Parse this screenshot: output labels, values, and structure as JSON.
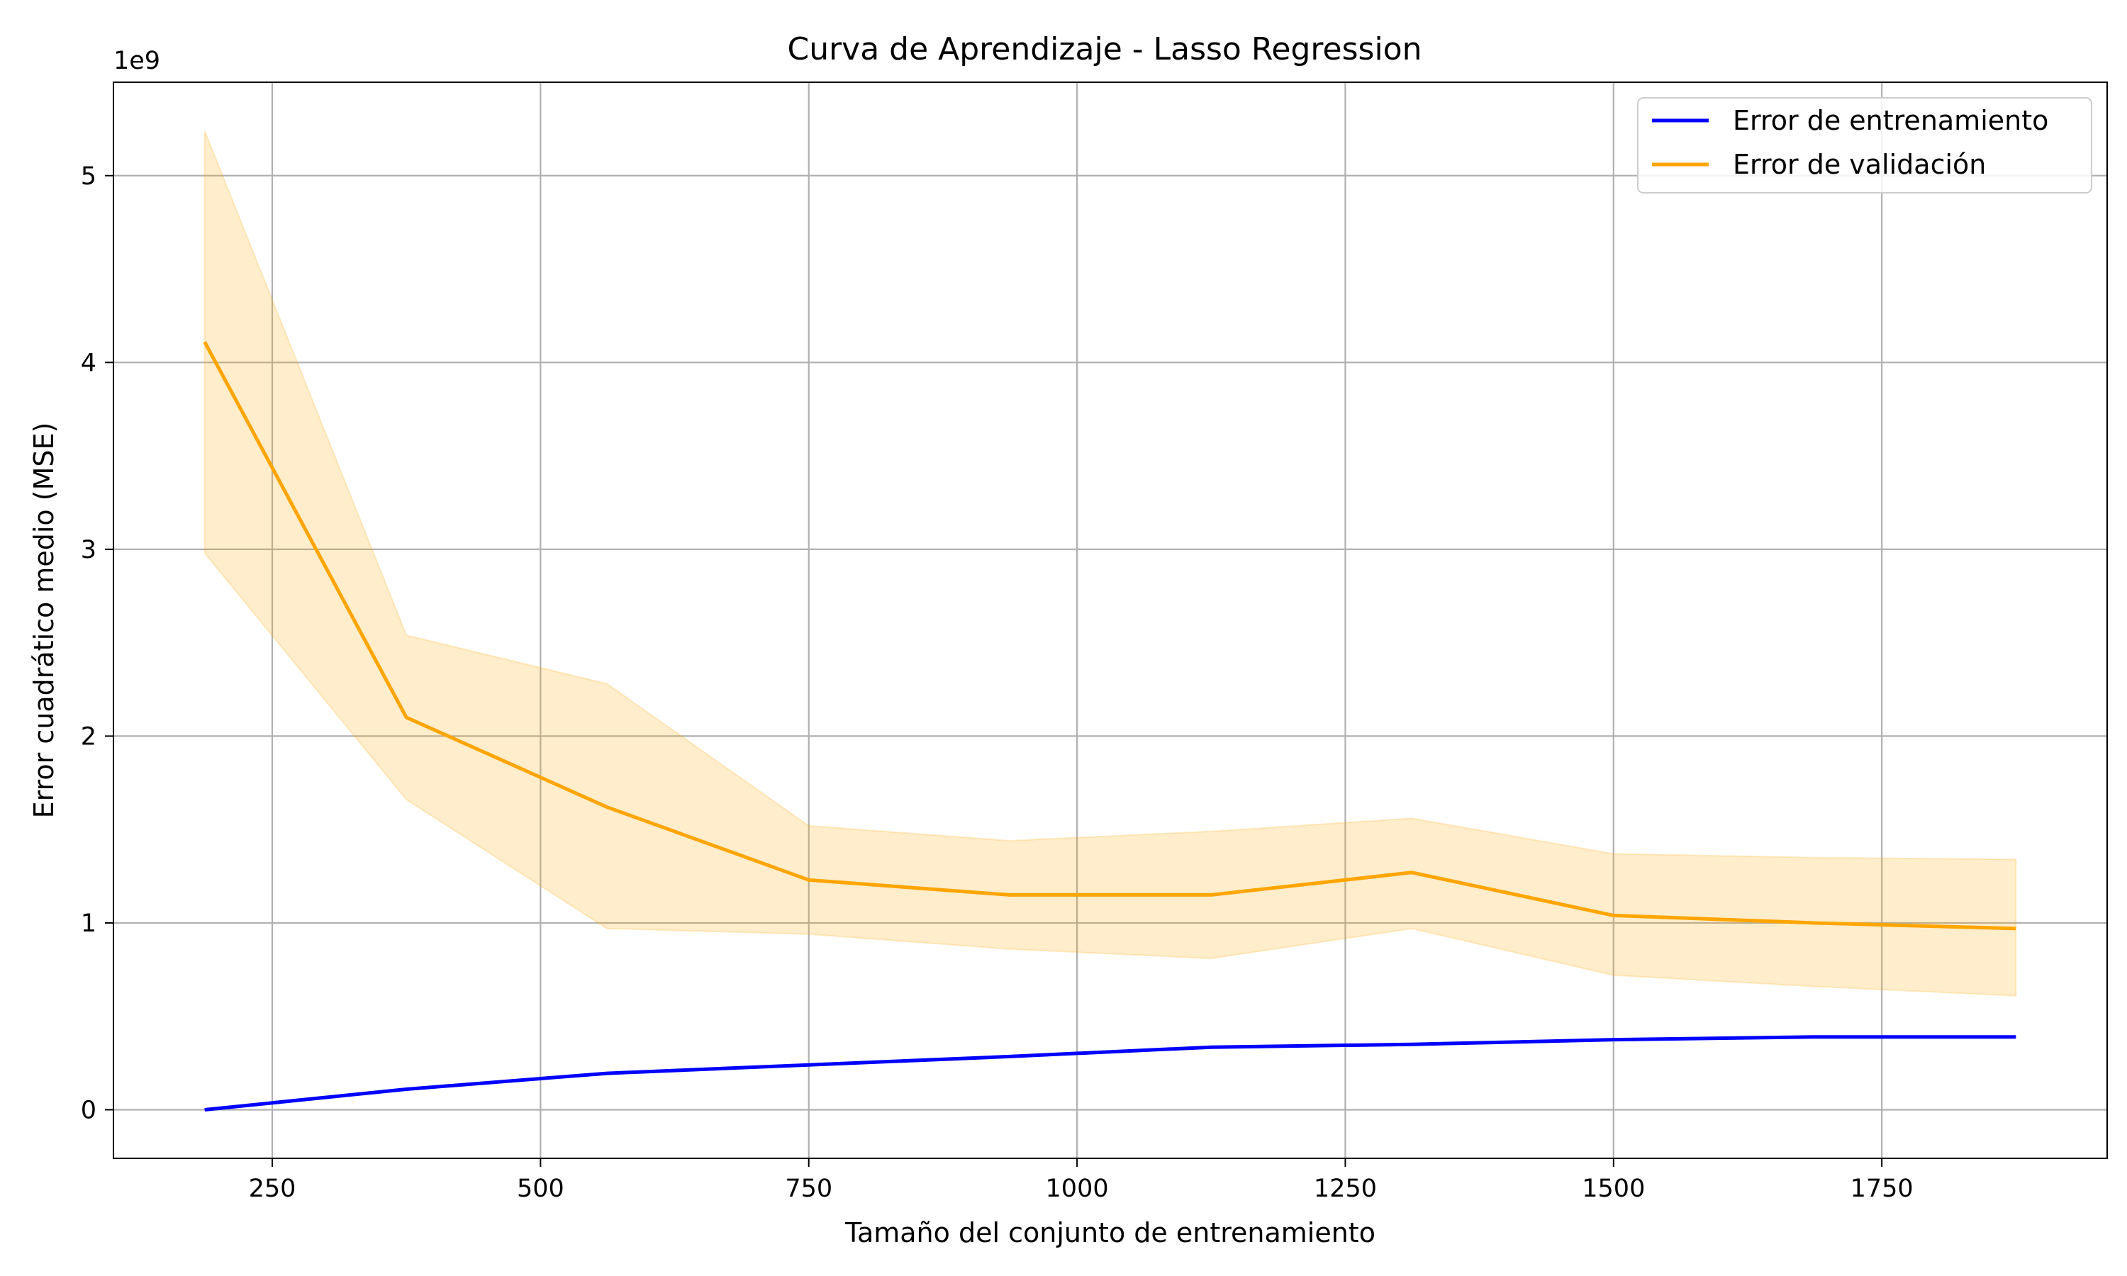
{
  "chart_data": {
    "type": "line",
    "title": "Curva de Aprendizaje - Lasso Regression",
    "xlabel": "Tamaño del conjunto de entrenamiento",
    "ylabel": "Error cuadrático medio (MSE)",
    "y_offset_label": "1e9",
    "xlim": [
      102,
      1960
    ],
    "ylim": [
      -0.26,
      5.5
    ],
    "x_ticks": [
      250,
      500,
      750,
      1000,
      1250,
      1500,
      1750
    ],
    "x_tick_labels": [
      "250",
      "500",
      "750",
      "1000",
      "1250",
      "1500",
      "1750"
    ],
    "y_ticks": [
      0,
      1,
      2,
      3,
      4,
      5
    ],
    "y_tick_labels": [
      "0",
      "1",
      "2",
      "3",
      "4",
      "5"
    ],
    "y_scale_note": "values in units of 1e9",
    "grid": true,
    "legend_position": "top-right",
    "x": [
      187,
      375,
      562,
      750,
      937,
      1125,
      1312,
      1500,
      1687,
      1875
    ],
    "series": [
      {
        "name": "Error de entrenamiento",
        "color": "#0000ff",
        "values": [
          0.0,
          0.11,
          0.195,
          0.24,
          0.285,
          0.335,
          0.35,
          0.375,
          0.39,
          0.39
        ]
      },
      {
        "name": "Error de validación",
        "color": "#ffa500",
        "values": [
          4.11,
          2.1,
          1.62,
          1.23,
          1.15,
          1.15,
          1.27,
          1.04,
          1.0,
          0.97
        ],
        "band_upper": [
          5.24,
          2.54,
          2.28,
          1.52,
          1.44,
          1.49,
          1.56,
          1.37,
          1.35,
          1.34
        ],
        "band_lower": [
          2.98,
          1.66,
          0.97,
          0.94,
          0.86,
          0.81,
          0.97,
          0.72,
          0.66,
          0.61
        ],
        "band_color": "#ffa500"
      }
    ]
  }
}
